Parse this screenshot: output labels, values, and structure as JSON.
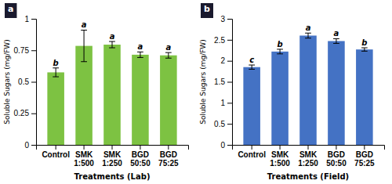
{
  "chart_data": [
    {
      "type": "bar",
      "title": "a",
      "categories": [
        "Control",
        "SMK\n1:500",
        "SMK\n1:250",
        "BGD\n50:50",
        "BGD\n75:25"
      ],
      "values": [
        0.575,
        0.785,
        0.795,
        0.715,
        0.71
      ],
      "errors": [
        0.035,
        0.125,
        0.025,
        0.022,
        0.022
      ],
      "annotations": [
        "b",
        "a",
        "a",
        "a",
        "a"
      ],
      "color": "#7DC242",
      "ylabel": "Soluble Sugars (mg/FW)",
      "xlabel": "Treatments (Lab)",
      "ylim": [
        0,
        1
      ],
      "yticks": [
        0,
        0.25,
        0.5,
        0.75,
        1
      ],
      "grid": false
    },
    {
      "type": "bar",
      "title": "b",
      "categories": [
        "Control",
        "SMK\n1:500",
        "SMK\n1:250",
        "BGD\n50:50",
        "BGD\n75:25"
      ],
      "values": [
        1.85,
        2.22,
        2.6,
        2.47,
        2.27
      ],
      "errors": [
        0.05,
        0.055,
        0.06,
        0.055,
        0.04
      ],
      "annotations": [
        "c",
        "b",
        "a",
        "a",
        "b"
      ],
      "color": "#4472C4",
      "ylabel": "Soluble Sugars (mg/FW)",
      "xlabel": "Treatments (Field)",
      "ylim": [
        0,
        3
      ],
      "yticks": [
        0,
        0.5,
        1,
        1.5,
        2,
        2.5,
        3
      ],
      "grid": false
    }
  ]
}
